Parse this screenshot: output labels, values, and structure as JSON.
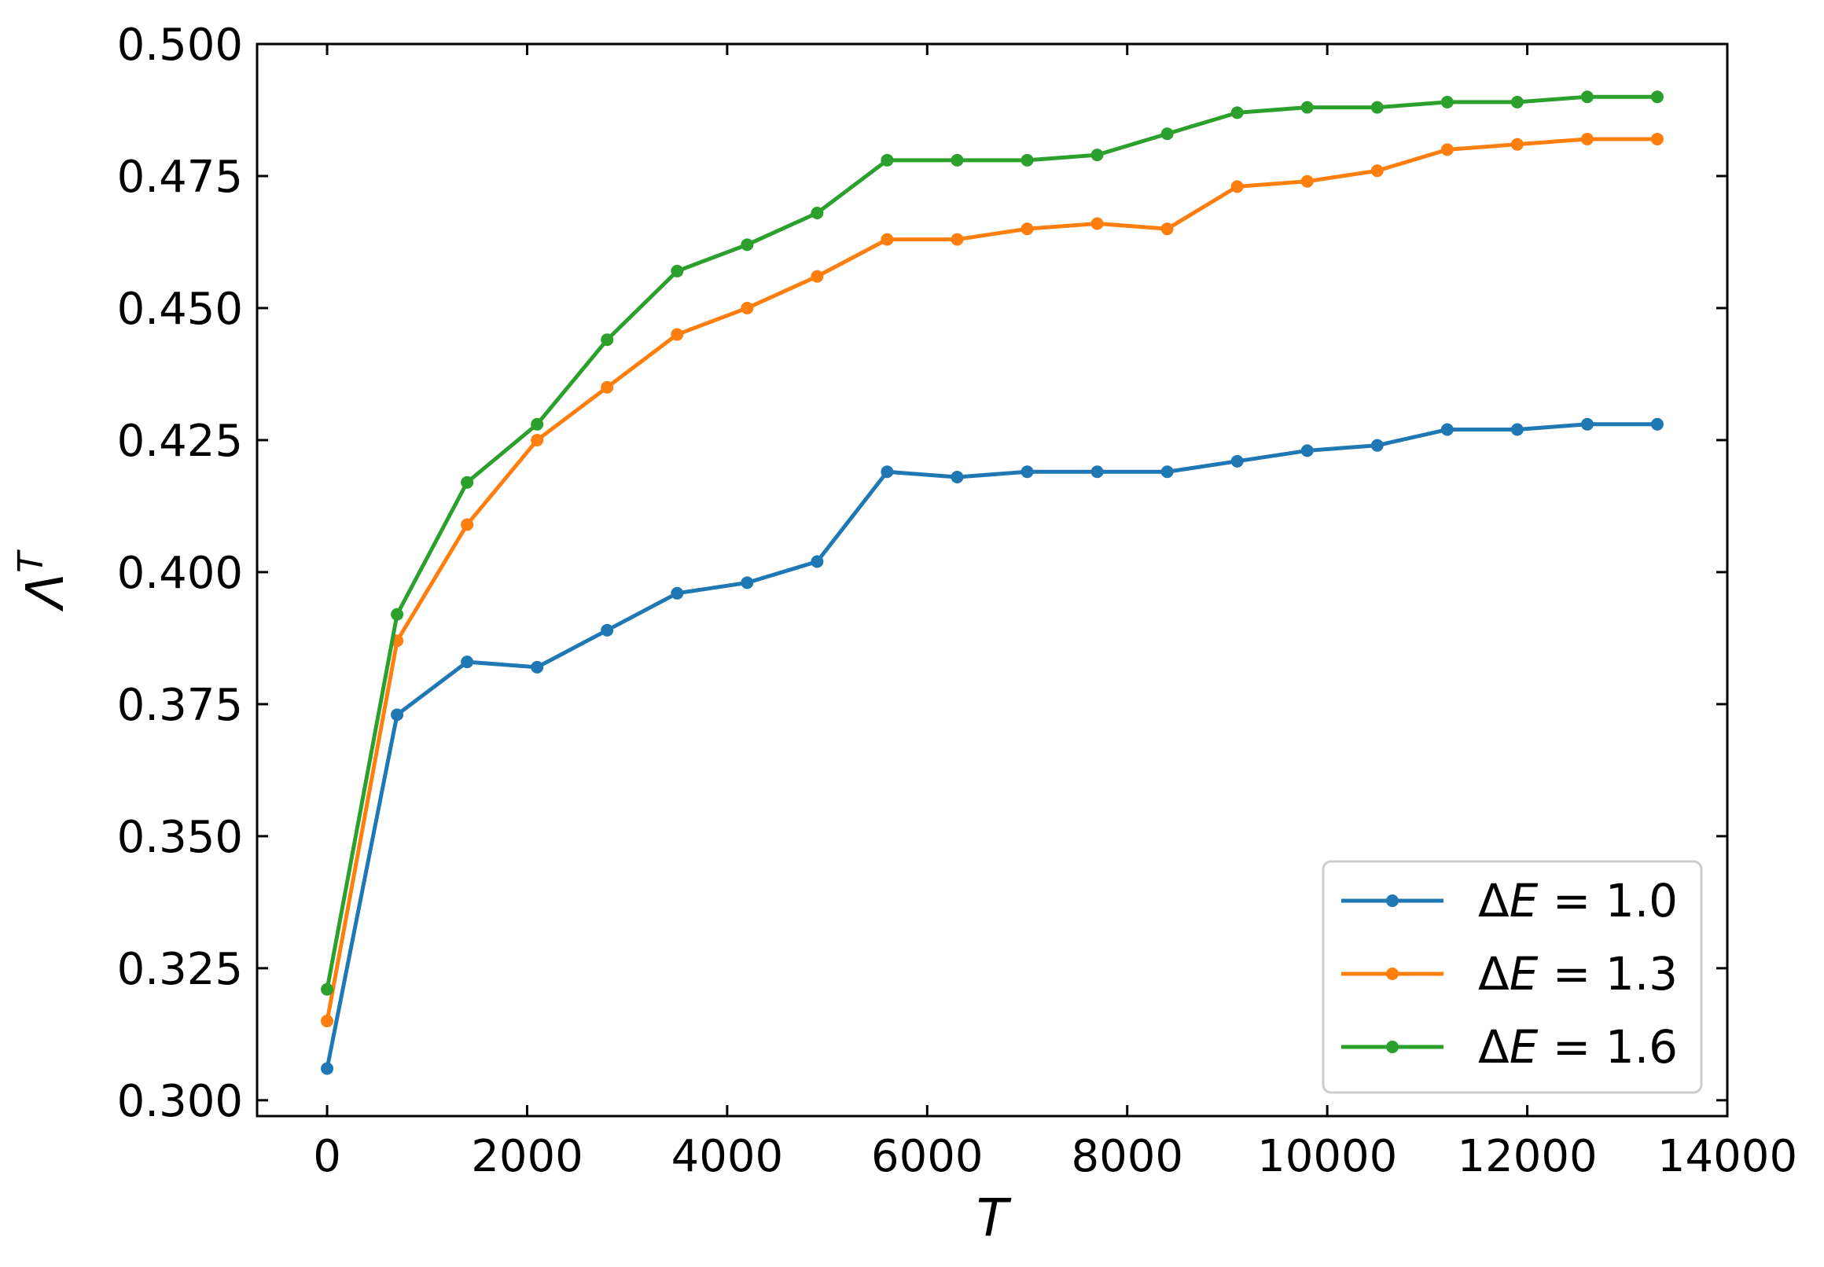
{
  "chart_data": {
    "type": "line",
    "xlabel": "T",
    "ylabel_base": "Λ",
    "ylabel_sup": "T",
    "xlim": [
      -700,
      14000
    ],
    "ylim": [
      0.297,
      0.5
    ],
    "xticks": [
      0,
      2000,
      4000,
      6000,
      8000,
      10000,
      12000,
      14000
    ],
    "xtick_labels": [
      "0",
      "2000",
      "4000",
      "6000",
      "8000",
      "10000",
      "12000",
      "14000"
    ],
    "yticks": [
      0.3,
      0.325,
      0.35,
      0.375,
      0.4,
      0.425,
      0.45,
      0.475,
      0.5
    ],
    "ytick_labels": [
      "0.300",
      "0.325",
      "0.350",
      "0.375",
      "0.400",
      "0.425",
      "0.450",
      "0.475",
      "0.500"
    ],
    "grid": false,
    "legend_position": "bottom-right",
    "x": [
      0,
      700,
      1400,
      2100,
      2800,
      3500,
      4200,
      4900,
      5600,
      6300,
      7000,
      7700,
      8400,
      9100,
      9800,
      10500,
      11200,
      11900,
      12600,
      13300
    ],
    "series": [
      {
        "name": "ΔE = 1.0",
        "legend_italic": "E",
        "legend_pre": "Δ",
        "legend_post": " = 1.0",
        "color": "#1f77b4",
        "values": [
          0.306,
          0.373,
          0.383,
          0.382,
          0.389,
          0.396,
          0.398,
          0.402,
          0.419,
          0.418,
          0.419,
          0.419,
          0.419,
          0.421,
          0.423,
          0.424,
          0.427,
          0.427,
          0.428,
          0.428
        ]
      },
      {
        "name": "ΔE = 1.3",
        "legend_italic": "E",
        "legend_pre": "Δ",
        "legend_post": " = 1.3",
        "color": "#ff7f0e",
        "values": [
          0.315,
          0.387,
          0.409,
          0.425,
          0.435,
          0.445,
          0.45,
          0.456,
          0.463,
          0.463,
          0.465,
          0.466,
          0.465,
          0.473,
          0.474,
          0.476,
          0.48,
          0.481,
          0.482,
          0.482
        ]
      },
      {
        "name": "ΔE = 1.6",
        "legend_italic": "E",
        "legend_pre": "Δ",
        "legend_post": " = 1.6",
        "color": "#2ca02c",
        "values": [
          0.321,
          0.392,
          0.417,
          0.428,
          0.444,
          0.457,
          0.462,
          0.468,
          0.478,
          0.478,
          0.478,
          0.479,
          0.483,
          0.487,
          0.488,
          0.488,
          0.489,
          0.489,
          0.49,
          0.49
        ]
      }
    ]
  }
}
